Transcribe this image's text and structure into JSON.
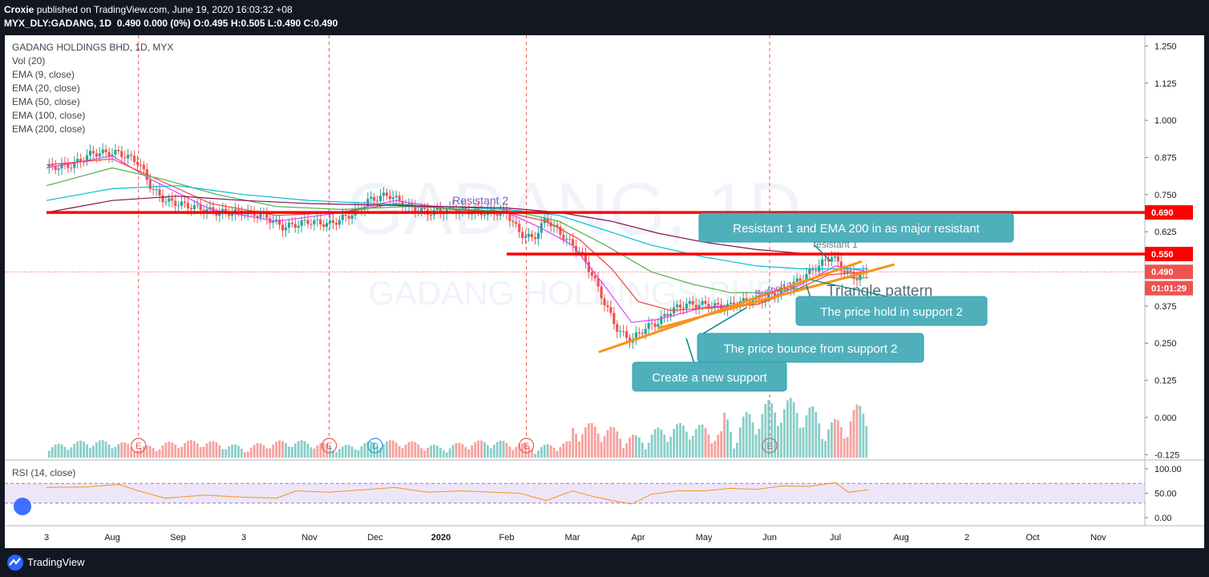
{
  "header": {
    "publisher": "Croxie",
    "published_text": "published on TradingView.com, June 19, 2020 16:03:32 +08",
    "symbol": "MYX_DLY:GADANG, 1D",
    "quote": "0.490 0.000 (0%)",
    "open": "O:0.495",
    "high": "H:0.505",
    "low": "L:0.490",
    "close": "C:0.490"
  },
  "legend": {
    "title": "GADANG HOLDINGS BHD, 1D, MYX",
    "vol": "Vol (20)",
    "ema9": "EMA (9, close)",
    "ema20": "EMA (20, close)",
    "ema50": "EMA (50, close)",
    "ema100": "EMA (100, close)",
    "ema200": "EMA (200, close)"
  },
  "watermark": {
    "line1": "GADANG, 1D",
    "line2": "GADANG HOLDINGS BHD"
  },
  "colors": {
    "up": "#26a69a",
    "down": "#ef5350",
    "resistance": "#ff0000",
    "trendline": "#f7931a",
    "callout": "#4fb0bb",
    "ema9": "#e040fb",
    "ema20": "#f44336",
    "ema50": "#4caf50",
    "ema100": "#00bcd4",
    "ema200": "#880e4f",
    "rsi": "#f7931a",
    "rsi_band": "#e1d5f5"
  },
  "chart_data": {
    "type": "candlestick",
    "price_axis": {
      "ticks": [
        "1.250",
        "1.125",
        "1.000",
        "0.875",
        "0.750",
        "0.625",
        "0.500",
        "0.375",
        "0.250",
        "0.125",
        "0.000",
        "-0.125"
      ],
      "range": [
        -0.135,
        1.27
      ]
    },
    "x_tick_labels": [
      "3",
      "Aug",
      "Sep",
      "3",
      "Nov",
      "Dec",
      "2020",
      "Feb",
      "Mar",
      "Apr",
      "May",
      "Jun",
      "Jul",
      "Aug",
      "2",
      "Oct",
      "Nov"
    ],
    "price_labels": [
      {
        "text": "0.690",
        "price": 0.69,
        "color": "#ff0000"
      },
      {
        "text": "0.550",
        "price": 0.55,
        "color": "#ff0000"
      },
      {
        "text": "0.490",
        "price": 0.49,
        "color": "#ef5350"
      },
      {
        "text": "01:01:29",
        "price": 0.435,
        "color": "#ef5350"
      }
    ],
    "horizontal_levels": [
      {
        "price": 0.69,
        "label": "Resistant 2",
        "from_month": 0,
        "to_month": 17.3
      },
      {
        "price": 0.55,
        "label": "resistant 1",
        "from_month": 7.0,
        "to_month": 17.3
      }
    ],
    "trendlines": [
      {
        "from": [
          8.4,
          0.22
        ],
        "to": [
          12.4,
          0.525
        ],
        "label": ""
      },
      {
        "from": [
          9.3,
          0.3
        ],
        "to": [
          12.9,
          0.515
        ],
        "label": "Support 1"
      }
    ],
    "callouts": [
      {
        "text": "Resistant 1 and EMA 200 in as major resistant"
      },
      {
        "text": "Triangle pattern"
      },
      {
        "text": "The price hold in support 2"
      },
      {
        "text": "The price bounce from support 2"
      },
      {
        "text": "Create a new support"
      }
    ],
    "close_path": [
      [
        0.0,
        0.84
      ],
      [
        0.4,
        0.85
      ],
      [
        0.7,
        0.89
      ],
      [
        1.1,
        0.89
      ],
      [
        1.4,
        0.86
      ],
      [
        1.6,
        0.77
      ],
      [
        1.8,
        0.73
      ],
      [
        2.2,
        0.71
      ],
      [
        2.6,
        0.69
      ],
      [
        3.0,
        0.69
      ],
      [
        3.3,
        0.68
      ],
      [
        3.6,
        0.64
      ],
      [
        4.0,
        0.66
      ],
      [
        4.3,
        0.65
      ],
      [
        4.7,
        0.69
      ],
      [
        4.9,
        0.73
      ],
      [
        5.2,
        0.75
      ],
      [
        5.5,
        0.71
      ],
      [
        5.8,
        0.69
      ],
      [
        6.2,
        0.7
      ],
      [
        6.6,
        0.69
      ],
      [
        7.0,
        0.69
      ],
      [
        7.2,
        0.62
      ],
      [
        7.4,
        0.6
      ],
      [
        7.6,
        0.67
      ],
      [
        7.9,
        0.6
      ],
      [
        8.1,
        0.56
      ],
      [
        8.3,
        0.48
      ],
      [
        8.5,
        0.38
      ],
      [
        8.7,
        0.29
      ],
      [
        8.9,
        0.26
      ],
      [
        9.1,
        0.3
      ],
      [
        9.3,
        0.32
      ],
      [
        9.5,
        0.36
      ],
      [
        9.7,
        0.38
      ],
      [
        10.0,
        0.38
      ],
      [
        10.3,
        0.37
      ],
      [
        10.6,
        0.39
      ],
      [
        10.9,
        0.4
      ],
      [
        11.1,
        0.42
      ],
      [
        11.3,
        0.44
      ],
      [
        11.5,
        0.47
      ],
      [
        11.8,
        0.52
      ],
      [
        11.95,
        0.545
      ],
      [
        12.1,
        0.5
      ],
      [
        12.3,
        0.47
      ],
      [
        12.5,
        0.49
      ]
    ],
    "ema9_path": [
      [
        0.0,
        0.84
      ],
      [
        1.0,
        0.88
      ],
      [
        1.6,
        0.8
      ],
      [
        2.5,
        0.7
      ],
      [
        3.5,
        0.66
      ],
      [
        4.5,
        0.69
      ],
      [
        5.3,
        0.73
      ],
      [
        6.2,
        0.7
      ],
      [
        7.0,
        0.69
      ],
      [
        7.5,
        0.64
      ],
      [
        8.0,
        0.58
      ],
      [
        8.5,
        0.44
      ],
      [
        8.9,
        0.32
      ],
      [
        9.3,
        0.33
      ],
      [
        10.0,
        0.37
      ],
      [
        10.6,
        0.38
      ],
      [
        11.0,
        0.4
      ],
      [
        11.5,
        0.45
      ],
      [
        12.0,
        0.51
      ],
      [
        12.5,
        0.49
      ]
    ],
    "ema20_path": [
      [
        0.0,
        0.85
      ],
      [
        1.0,
        0.87
      ],
      [
        1.8,
        0.79
      ],
      [
        2.5,
        0.72
      ],
      [
        3.5,
        0.68
      ],
      [
        4.5,
        0.69
      ],
      [
        5.3,
        0.72
      ],
      [
        6.2,
        0.7
      ],
      [
        7.0,
        0.69
      ],
      [
        7.6,
        0.66
      ],
      [
        8.1,
        0.6
      ],
      [
        8.6,
        0.5
      ],
      [
        9.0,
        0.39
      ],
      [
        9.5,
        0.36
      ],
      [
        10.2,
        0.37
      ],
      [
        10.8,
        0.38
      ],
      [
        11.3,
        0.42
      ],
      [
        11.9,
        0.48
      ],
      [
        12.5,
        0.49
      ]
    ],
    "ema50_path": [
      [
        0.0,
        0.78
      ],
      [
        1.0,
        0.84
      ],
      [
        1.8,
        0.8
      ],
      [
        2.6,
        0.75
      ],
      [
        3.5,
        0.71
      ],
      [
        4.5,
        0.7
      ],
      [
        5.5,
        0.71
      ],
      [
        6.4,
        0.7
      ],
      [
        7.2,
        0.69
      ],
      [
        7.8,
        0.66
      ],
      [
        8.5,
        0.58
      ],
      [
        9.2,
        0.49
      ],
      [
        9.8,
        0.45
      ],
      [
        10.4,
        0.42
      ],
      [
        11.0,
        0.42
      ],
      [
        11.6,
        0.44
      ],
      [
        12.2,
        0.47
      ],
      [
        12.5,
        0.47
      ]
    ],
    "ema100_path": [
      [
        0.0,
        0.73
      ],
      [
        1.0,
        0.77
      ],
      [
        2.0,
        0.78
      ],
      [
        3.0,
        0.75
      ],
      [
        4.0,
        0.73
      ],
      [
        5.0,
        0.72
      ],
      [
        6.0,
        0.71
      ],
      [
        7.0,
        0.7
      ],
      [
        7.8,
        0.68
      ],
      [
        8.5,
        0.63
      ],
      [
        9.2,
        0.58
      ],
      [
        10.0,
        0.54
      ],
      [
        10.8,
        0.51
      ],
      [
        11.5,
        0.5
      ],
      [
        12.2,
        0.5
      ],
      [
        12.5,
        0.5
      ]
    ],
    "ema200_path": [
      [
        0.0,
        0.69
      ],
      [
        1.0,
        0.73
      ],
      [
        2.0,
        0.745
      ],
      [
        3.0,
        0.73
      ],
      [
        4.0,
        0.72
      ],
      [
        5.0,
        0.715
      ],
      [
        6.0,
        0.71
      ],
      [
        7.0,
        0.705
      ],
      [
        7.8,
        0.69
      ],
      [
        8.6,
        0.66
      ],
      [
        9.3,
        0.62
      ],
      [
        10.0,
        0.59
      ],
      [
        10.8,
        0.565
      ],
      [
        11.5,
        0.552
      ],
      [
        12.2,
        0.548
      ],
      [
        12.5,
        0.548
      ]
    ],
    "earnings_marks": [
      {
        "month": 1.4,
        "label": "E"
      },
      {
        "month": 4.3,
        "label": "E"
      },
      {
        "month": 7.3,
        "label": "E"
      },
      {
        "month": 11.0,
        "label": "E"
      }
    ],
    "dividend_marks": [
      {
        "month": 5.0,
        "label": "D"
      }
    ],
    "rsi": {
      "label": "RSI (14, close)",
      "axis_ticks": [
        "100.00",
        "50.00",
        "0.00"
      ],
      "band": [
        30,
        70
      ],
      "path": [
        [
          0.0,
          62
        ],
        [
          0.6,
          63
        ],
        [
          1.1,
          68
        ],
        [
          1.4,
          55
        ],
        [
          1.8,
          40
        ],
        [
          2.4,
          46
        ],
        [
          3.0,
          42
        ],
        [
          3.5,
          40
        ],
        [
          3.8,
          55
        ],
        [
          4.3,
          52
        ],
        [
          4.8,
          57
        ],
        [
          5.3,
          62
        ],
        [
          5.8,
          52
        ],
        [
          6.3,
          55
        ],
        [
          6.8,
          52
        ],
        [
          7.2,
          50
        ],
        [
          7.6,
          35
        ],
        [
          8.0,
          55
        ],
        [
          8.3,
          44
        ],
        [
          8.6,
          35
        ],
        [
          8.9,
          28
        ],
        [
          9.2,
          48
        ],
        [
          9.6,
          55
        ],
        [
          10.0,
          55
        ],
        [
          10.4,
          60
        ],
        [
          10.8,
          58
        ],
        [
          11.2,
          65
        ],
        [
          11.6,
          64
        ],
        [
          12.0,
          72
        ],
        [
          12.2,
          52
        ],
        [
          12.5,
          57
        ]
      ]
    }
  }
}
